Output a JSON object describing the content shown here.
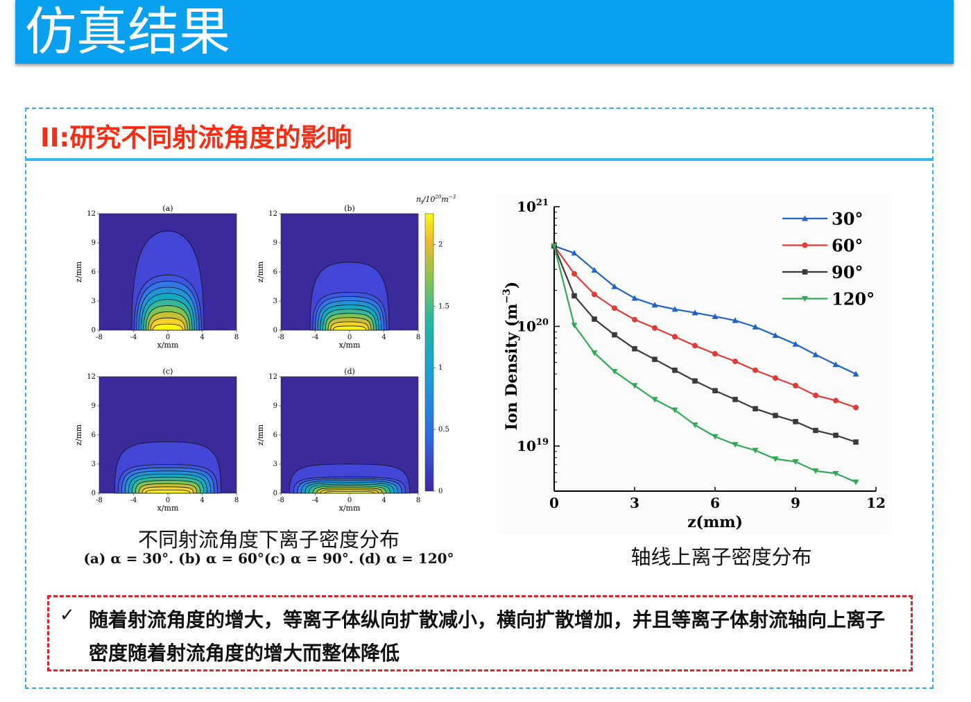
{
  "header": {
    "title": "仿真结果"
  },
  "section": {
    "title": "II:研究不同射流角度的影响"
  },
  "contour_panel": {
    "colorbar_label": "n_i/10^20 m^-3",
    "colorbar_ticks": [
      "0",
      "0.5",
      "1",
      "1.5",
      "2"
    ],
    "caption": "不同射流角度下离子密度分布",
    "subcaption": "(a) α = 30°. (b) α = 60°(c) α = 90°. (d) α = 120°",
    "panels": [
      {
        "label": "(a)",
        "xlabel": "x/mm",
        "ylabel": "z/mm",
        "xticks": [
          "-8",
          "-4",
          "0",
          "4",
          "8"
        ],
        "yticks": [
          "0",
          "3",
          "6",
          "9",
          "12"
        ]
      },
      {
        "label": "(b)",
        "xlabel": "x/mm",
        "ylabel": "z/mm",
        "xticks": [
          "-8",
          "-4",
          "0",
          "4",
          "8"
        ],
        "yticks": [
          "0",
          "3",
          "6",
          "9",
          "12"
        ]
      },
      {
        "label": "(c)",
        "xlabel": "x/mm",
        "ylabel": "z/mm",
        "xticks": [
          "-8",
          "-4",
          "0",
          "4",
          "8"
        ],
        "yticks": [
          "0",
          "3",
          "6",
          "9",
          "12"
        ]
      },
      {
        "label": "(d)",
        "xlabel": "x/mm",
        "ylabel": "z/mm",
        "xticks": [
          "-8",
          "-4",
          "0",
          "4",
          "8"
        ],
        "yticks": [
          "0",
          "3",
          "6",
          "9",
          "12"
        ]
      }
    ],
    "colors": {
      "background": "#3a2a9c",
      "low": "#3f3fc8",
      "mid": "#2aa8a8",
      "high": "#f7e11f"
    }
  },
  "chart_data": {
    "type": "line",
    "caption": "轴线上离子密度分布",
    "xlabel": "z(mm)",
    "ylabel": "Ion Density (m^-3)",
    "yscale": "log",
    "xlim": [
      0,
      12
    ],
    "ylim": [
      4.2e+18,
      1e+21
    ],
    "xticks": [
      "0",
      "3",
      "6",
      "9",
      "12"
    ],
    "yticks": [
      {
        "base": "10",
        "exp": "21",
        "value": 1e+21
      },
      {
        "base": "10",
        "exp": "20",
        "value": 1e+20
      },
      {
        "base": "10",
        "exp": "19",
        "value": 1e+19
      }
    ],
    "legend_position": "top-right",
    "x": [
      0,
      0.75,
      1.5,
      2.25,
      3.0,
      3.75,
      4.5,
      5.25,
      6.0,
      6.75,
      7.5,
      8.25,
      9.0,
      9.75,
      10.5,
      11.25
    ],
    "series": [
      {
        "name": "30°",
        "color": "#1f62c8",
        "marker": "triangle-up",
        "values": [
          4.7e+20,
          4.1e+20,
          2.95e+20,
          2.15e+20,
          1.72e+20,
          1.51e+20,
          1.39e+20,
          1.3e+20,
          1.21e+20,
          1.12e+20,
          9.9e+19,
          8.4e+19,
          7.1e+19,
          5.8e+19,
          4.8e+19,
          4e+19
        ]
      },
      {
        "name": "60°",
        "color": "#e33a36",
        "marker": "circle",
        "values": [
          4.7e+20,
          2.75e+20,
          1.85e+20,
          1.42e+20,
          1.14e+20,
          9.7e+19,
          8.2e+19,
          6.9e+19,
          5.9e+19,
          5.1e+19,
          4.3e+19,
          3.7e+19,
          3.2e+19,
          2.65e+19,
          2.4e+19,
          2.1e+19
        ]
      },
      {
        "name": "90°",
        "color": "#3a3a3a",
        "marker": "square",
        "values": [
          4.7e+20,
          1.8e+20,
          1.15e+20,
          8.5e+19,
          6.5e+19,
          5.3e+19,
          4.3e+19,
          3.5e+19,
          2.9e+19,
          2.45e+19,
          2.05e+19,
          1.8e+19,
          1.6e+19,
          1.35e+19,
          1.23e+19,
          1.08e+19
        ]
      },
      {
        "name": "120°",
        "color": "#2eaa55",
        "marker": "triangle-down",
        "values": [
          4.7e+20,
          1.02e+20,
          6e+19,
          4.2e+19,
          3.2e+19,
          2.45e+19,
          2e+19,
          1.5e+19,
          1.2e+19,
          1.03e+19,
          9.2e+18,
          7.8e+18,
          7.4e+18,
          6.2e+18,
          5.9e+18,
          5e+18
        ]
      }
    ]
  },
  "note": {
    "check": "✓",
    "text": "随着射流角度的增大，等离子体纵向扩散减小，横向扩散增加，并且等离子体射流轴向上离子密度随着射流角度的增大而整体降低"
  }
}
